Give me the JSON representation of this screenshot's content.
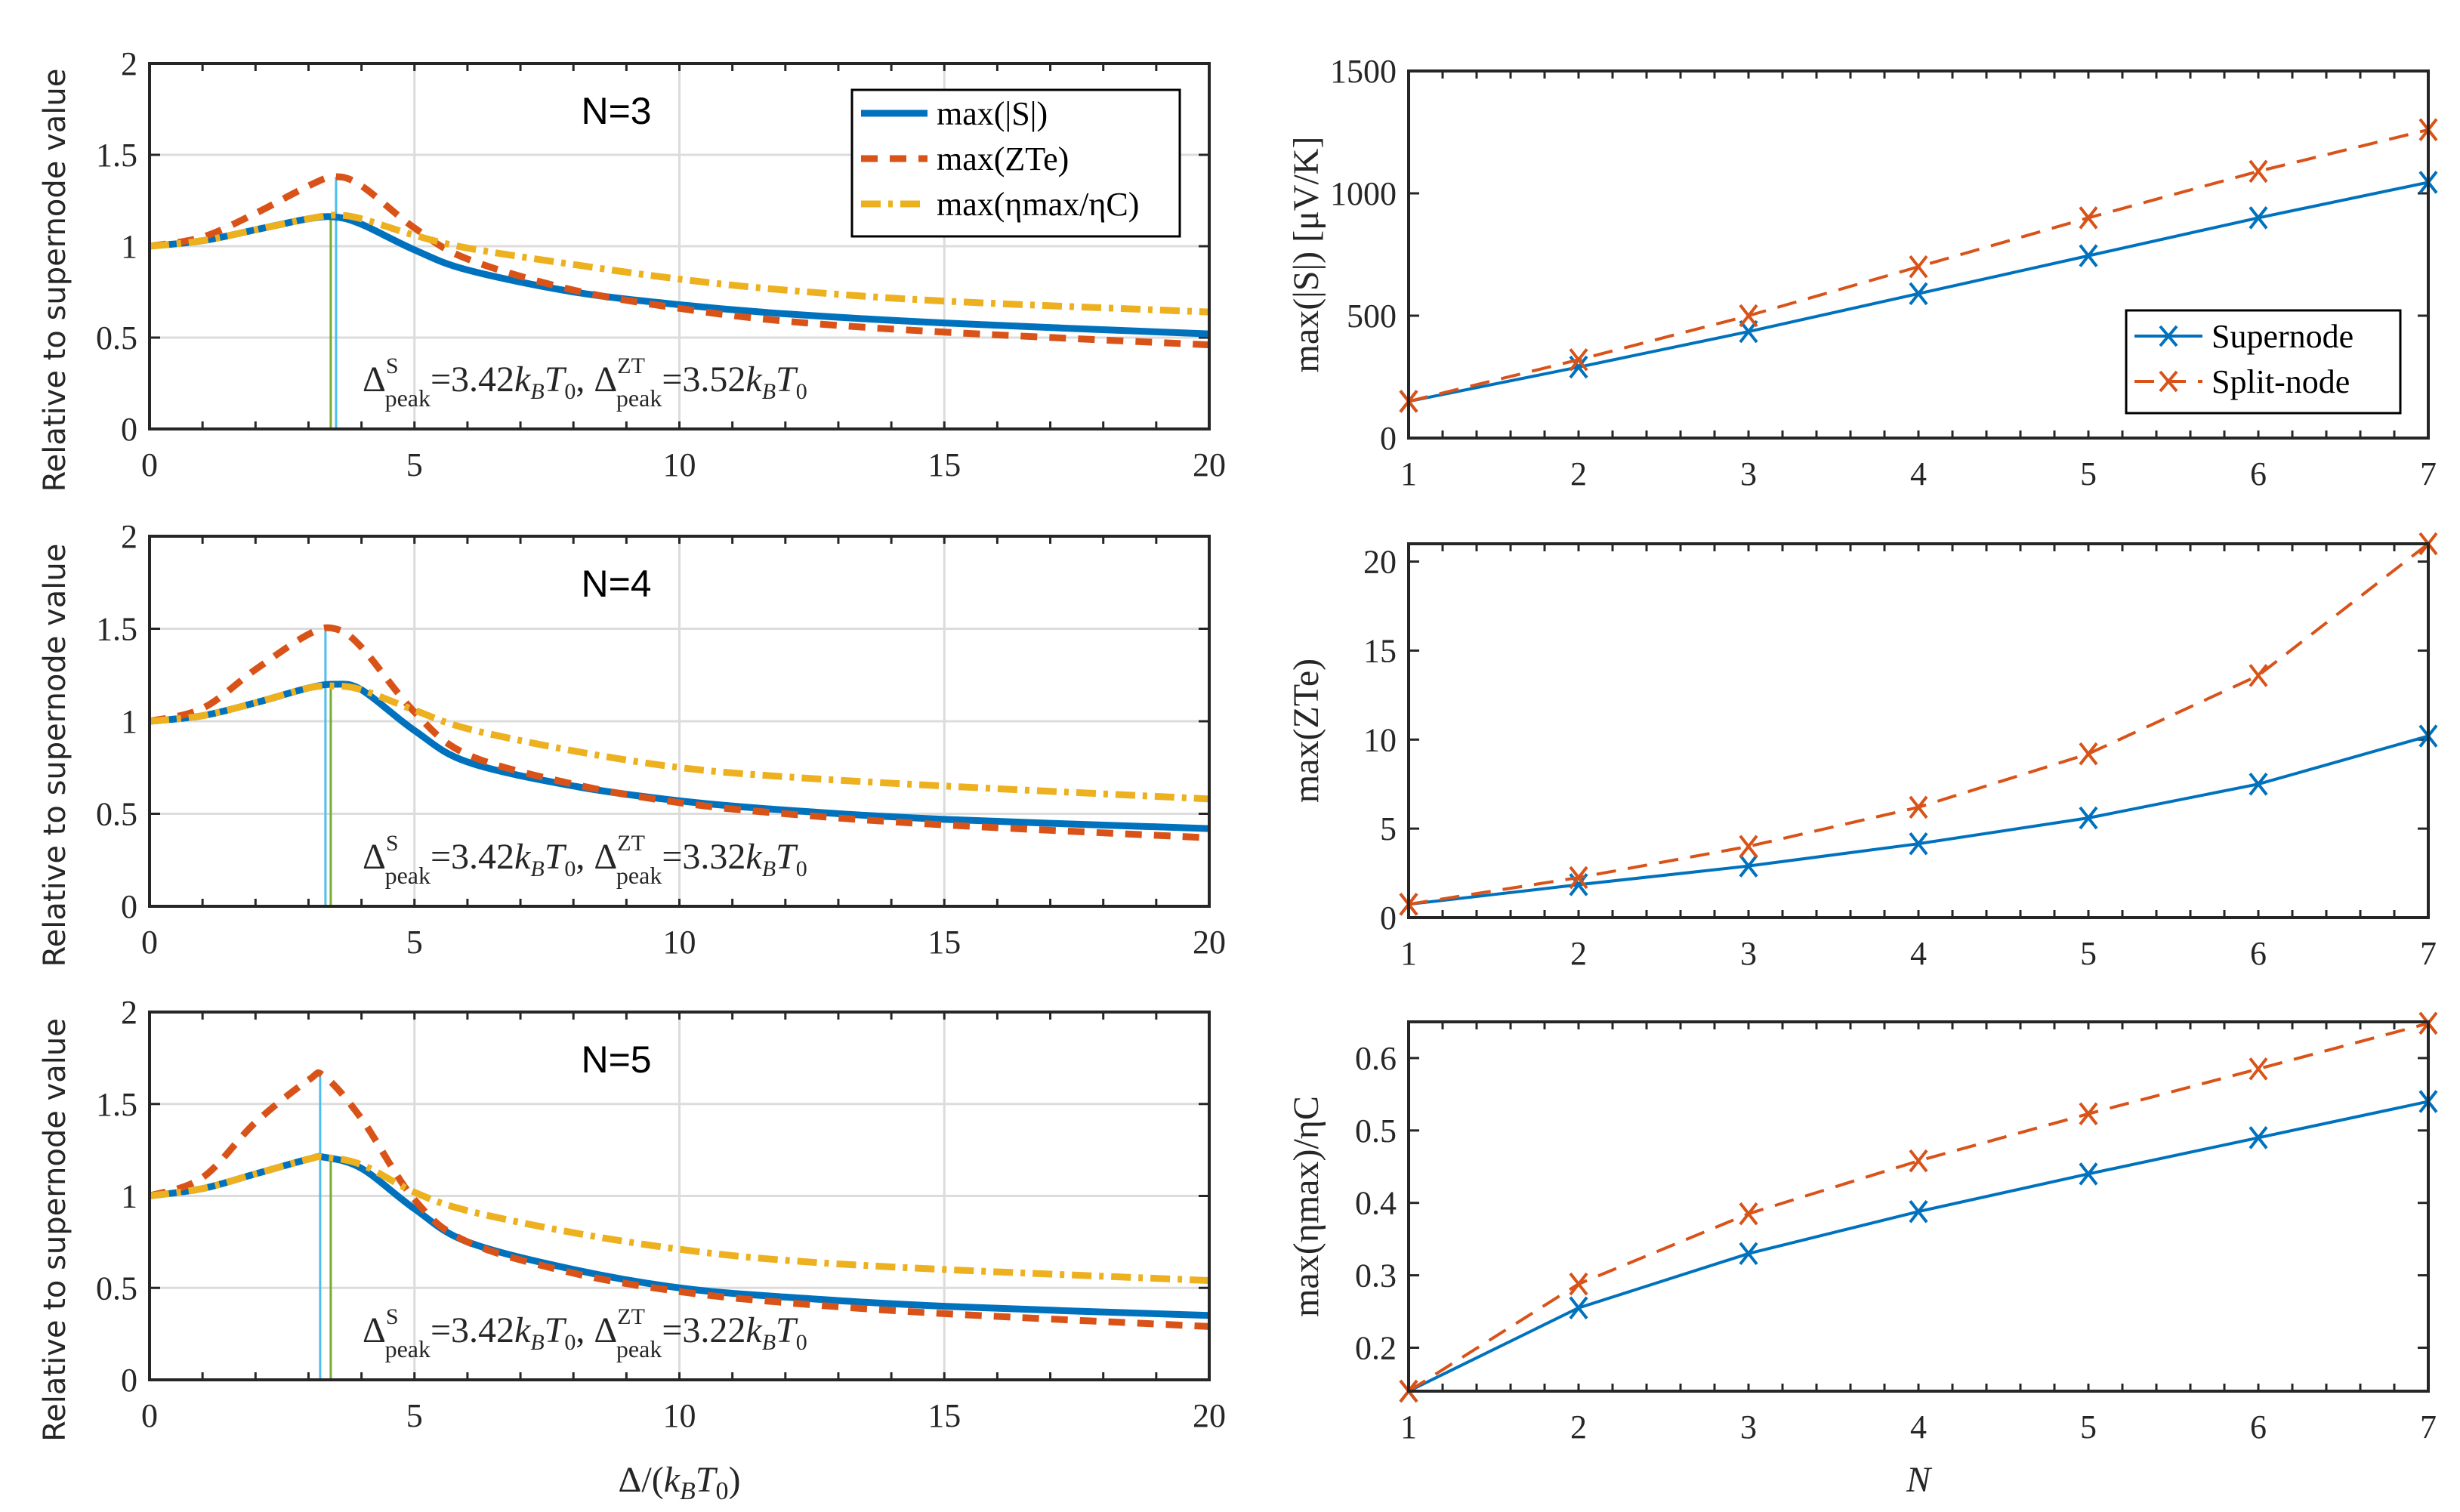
{
  "colors": {
    "supernode": "#0072BD",
    "splitnode": "#D95319",
    "eta": "#EDB120",
    "peak_s": "#77AC30",
    "peak_zt": "#4DBEEE",
    "grid": "#dcdcdc",
    "axis": "#262626"
  },
  "chart_data": [
    {
      "type": "line",
      "panel": "left-top",
      "title": "N=3",
      "ylabel": "Relative to supernode value",
      "xlabel": "",
      "xlim": [
        0,
        20
      ],
      "ylim": [
        0,
        2
      ],
      "xticks": [
        "0",
        "5",
        "10",
        "15",
        "20"
      ],
      "yticks": [
        "0",
        "0.5",
        "1",
        "1.5",
        "2"
      ],
      "grid": true,
      "x": [
        0,
        1,
        2,
        3,
        3.5,
        4,
        5,
        6,
        8,
        10,
        12,
        15,
        20
      ],
      "series": [
        {
          "name": "max(|S|)",
          "values": [
            1,
            1.03,
            1.09,
            1.15,
            1.16,
            1.12,
            0.98,
            0.87,
            0.75,
            0.68,
            0.63,
            0.58,
            0.52
          ]
        },
        {
          "name": "max(ZT_e)",
          "values": [
            1,
            1.05,
            1.18,
            1.33,
            1.38,
            1.33,
            1.1,
            0.93,
            0.76,
            0.66,
            0.59,
            0.53,
            0.46
          ]
        },
        {
          "name": "max(η_max/η_C)",
          "values": [
            1,
            1.03,
            1.09,
            1.15,
            1.17,
            1.15,
            1.06,
            0.99,
            0.9,
            0.82,
            0.76,
            0.7,
            0.64
          ]
        }
      ],
      "peaks": {
        "S": 3.42,
        "ZT": 3.52
      },
      "annotation": {
        "delta": "Δ",
        "sup_s": "S",
        "sup_zt": "ZT",
        "sub": "peak",
        "s_value": "=3.42",
        "zt_value": "=3.52",
        "unit_k": "k",
        "unit_b": "B",
        "unit_t": "T",
        "unit_0": "0",
        "sep": ", "
      },
      "legend": {
        "placement": "top-right",
        "items": [
          "max(|S|)",
          "max(ZTe)",
          "max(ηmax/ηC)"
        ]
      }
    },
    {
      "type": "line",
      "panel": "left-middle",
      "title": "N=4",
      "ylabel": "Relative to supernode value",
      "xlabel": "",
      "xlim": [
        0,
        20
      ],
      "ylim": [
        0,
        2
      ],
      "xticks": [
        "0",
        "5",
        "10",
        "15",
        "20"
      ],
      "yticks": [
        "0",
        "0.5",
        "1",
        "1.5",
        "2"
      ],
      "grid": true,
      "x": [
        0,
        1,
        2,
        3,
        3.5,
        4,
        5,
        6,
        8,
        10,
        12,
        15,
        20
      ],
      "series": [
        {
          "name": "max(|S|)",
          "values": [
            1,
            1.03,
            1.1,
            1.18,
            1.2,
            1.17,
            0.95,
            0.78,
            0.65,
            0.57,
            0.52,
            0.47,
            0.42
          ]
        },
        {
          "name": "max(ZT_e)",
          "values": [
            1,
            1.07,
            1.28,
            1.47,
            1.5,
            1.4,
            1.05,
            0.82,
            0.66,
            0.56,
            0.5,
            0.44,
            0.37
          ]
        },
        {
          "name": "max(η_max/η_C)",
          "values": [
            1,
            1.03,
            1.1,
            1.18,
            1.19,
            1.17,
            1.06,
            0.96,
            0.84,
            0.75,
            0.7,
            0.65,
            0.58
          ]
        }
      ],
      "peaks": {
        "S": 3.42,
        "ZT": 3.32
      },
      "annotation": {
        "delta": "Δ",
        "sup_s": "S",
        "sup_zt": "ZT",
        "sub": "peak",
        "s_value": "=3.42",
        "zt_value": "=3.32",
        "unit_k": "k",
        "unit_b": "B",
        "unit_t": "T",
        "unit_0": "0",
        "sep": ", "
      }
    },
    {
      "type": "line",
      "panel": "left-bottom",
      "title": "N=5",
      "ylabel": "Relative to supernode value",
      "xlabel": "Δ/(k_B T_0)",
      "xlim": [
        0,
        20
      ],
      "ylim": [
        0,
        2
      ],
      "xticks": [
        "0",
        "5",
        "10",
        "15",
        "20"
      ],
      "yticks": [
        "0",
        "0.5",
        "1",
        "1.5",
        "2"
      ],
      "grid": true,
      "x": [
        0,
        1,
        2,
        3,
        3.3,
        4,
        5,
        6,
        8,
        10,
        12,
        15,
        20
      ],
      "series": [
        {
          "name": "max(|S|)",
          "values": [
            1,
            1.04,
            1.12,
            1.2,
            1.21,
            1.15,
            0.93,
            0.75,
            0.6,
            0.5,
            0.45,
            0.4,
            0.35
          ]
        },
        {
          "name": "max(ZT_e)",
          "values": [
            1,
            1.1,
            1.4,
            1.63,
            1.65,
            1.42,
            0.98,
            0.75,
            0.58,
            0.48,
            0.42,
            0.36,
            0.29
          ]
        },
        {
          "name": "max(η_max/η_C)",
          "values": [
            1,
            1.04,
            1.12,
            1.2,
            1.21,
            1.17,
            1.02,
            0.92,
            0.8,
            0.71,
            0.65,
            0.6,
            0.54
          ]
        }
      ],
      "peaks": {
        "S": 3.42,
        "ZT": 3.22
      },
      "annotation": {
        "delta": "Δ",
        "sup_s": "S",
        "sup_zt": "ZT",
        "sub": "peak",
        "s_value": "=3.42",
        "zt_value": "=3.22",
        "unit_k": "k",
        "unit_b": "B",
        "unit_t": "T",
        "unit_0": "0",
        "sep": ", "
      },
      "xlabel_parts": {
        "a": "Δ/(",
        "k": "k",
        "b": "B",
        "t": "T",
        "z": "0",
        "c": ")"
      }
    },
    {
      "type": "line",
      "panel": "right-top",
      "ylabel": "max(|S|) [μV/K]",
      "xlim": [
        1,
        7
      ],
      "ylim": [
        0,
        1500
      ],
      "xticks": [
        "1",
        "2",
        "3",
        "4",
        "5",
        "6",
        "7"
      ],
      "yticks": [
        "0",
        "500",
        "1000",
        "1500"
      ],
      "ytick_values": [
        0,
        500,
        1000,
        1500
      ],
      "x": [
        1,
        2,
        3,
        4,
        5,
        6,
        7
      ],
      "series": [
        {
          "name": "Supernode",
          "values": [
            150,
            290,
            435,
            590,
            745,
            900,
            1045
          ]
        },
        {
          "name": "Split-node",
          "values": [
            150,
            320,
            500,
            700,
            900,
            1090,
            1260
          ]
        }
      ],
      "legend": {
        "placement": "bottom-right",
        "items": [
          "Supernode",
          "Split-node"
        ]
      }
    },
    {
      "type": "line",
      "panel": "right-middle",
      "ylabel": "max(ZTe)",
      "xlim": [
        1,
        7
      ],
      "ylim": [
        0,
        21
      ],
      "xticks": [
        "1",
        "2",
        "3",
        "4",
        "5",
        "6",
        "7"
      ],
      "yticks": [
        "0",
        "5",
        "10",
        "15",
        "20"
      ],
      "ytick_values": [
        0,
        5,
        10,
        15,
        20
      ],
      "x": [
        1,
        2,
        3,
        4,
        5,
        6,
        7
      ],
      "series": [
        {
          "name": "Supernode",
          "values": [
            0.75,
            1.85,
            2.9,
            4.15,
            5.6,
            7.5,
            10.2
          ]
        },
        {
          "name": "Split-node",
          "values": [
            0.75,
            2.25,
            4.0,
            6.2,
            9.2,
            13.6,
            21.0
          ]
        }
      ]
    },
    {
      "type": "line",
      "panel": "right-bottom",
      "ylabel": "max(ηmax)/ηC",
      "xlabel": "N",
      "xlim": [
        1,
        7
      ],
      "ylim": [
        0.14,
        0.65
      ],
      "xticks": [
        "1",
        "2",
        "3",
        "4",
        "5",
        "6",
        "7"
      ],
      "yticks": [
        "0.2",
        "0.3",
        "0.4",
        "0.5",
        "0.6"
      ],
      "ytick_values": [
        0.2,
        0.3,
        0.4,
        0.5,
        0.6
      ],
      "x": [
        1,
        2,
        3,
        4,
        5,
        6,
        7
      ],
      "series": [
        {
          "name": "Supernode",
          "values": [
            0.14,
            0.255,
            0.33,
            0.388,
            0.44,
            0.49,
            0.54
          ]
        },
        {
          "name": "Split-node",
          "values": [
            0.14,
            0.288,
            0.385,
            0.458,
            0.523,
            0.585,
            0.648
          ]
        }
      ]
    }
  ]
}
